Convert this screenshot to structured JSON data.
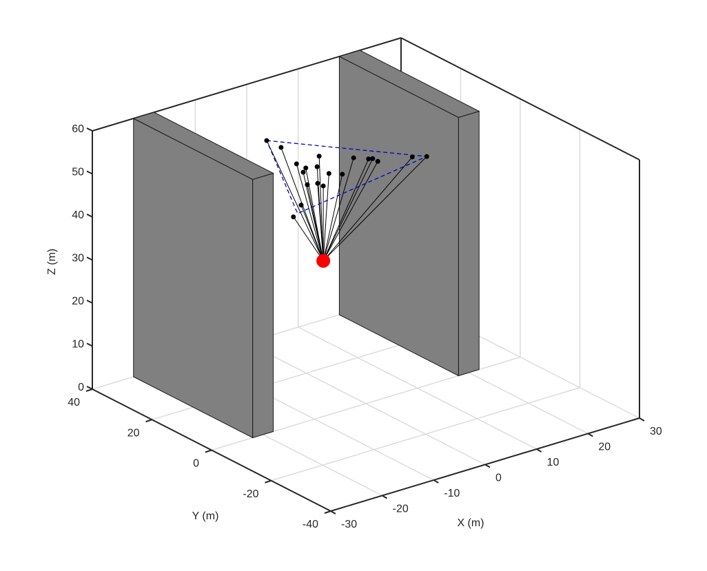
{
  "chart_data": {
    "type": "scatter3d",
    "xlabel": "X (m)",
    "ylabel": "Y (m)",
    "zlabel": "Z (m)",
    "xlim": [
      -30,
      30
    ],
    "ylim": [
      -40,
      40
    ],
    "zlim": [
      0,
      60
    ],
    "xticks": [
      -30,
      -20,
      -10,
      0,
      10,
      20,
      30
    ],
    "yticks": [
      -40,
      -20,
      0,
      20,
      40
    ],
    "zticks": [
      0,
      10,
      20,
      30,
      40,
      50,
      60
    ],
    "grid": true,
    "walls": [
      {
        "x": [
          -22,
          -18
        ],
        "y": [
          0,
          40
        ],
        "z": [
          0,
          60
        ],
        "color": "#808080"
      },
      {
        "x": [
          18,
          22
        ],
        "y": [
          0,
          40
        ],
        "z": [
          0,
          60
        ],
        "color": "#808080"
      }
    ],
    "source": {
      "x": 3.3,
      "y": 20,
      "z": 24.9,
      "color": "#ff0000"
    },
    "points": {
      "color": "#000000",
      "x": [
        -7.7,
        -4.9,
        -1.9,
        -0.1,
        -0.6,
        2.5,
        2.1,
        0.2,
        2.2,
        3.3,
        4.4,
        7.0,
        9.2,
        12.1,
        12.9,
        13.9,
        20.6,
        23.4,
        -1.0,
        -2.5
      ],
      "y": [
        20,
        20,
        20,
        20,
        20,
        20,
        20,
        20,
        20,
        20,
        20,
        20,
        20,
        20,
        20,
        20,
        20,
        20,
        20,
        20
      ],
      "z": [
        56.8,
        54.2,
        49.3,
        47.7,
        46.9,
        49.5,
        47.2,
        43.7,
        43.3,
        42.3,
        44.8,
        43.7,
        46.7,
        45.4,
        45.2,
        44.2,
        42.8,
        41.9,
        39.4,
        37.2
      ]
    },
    "triangle": {
      "color": "#0000cc",
      "x": [
        -7.7,
        23.4,
        -1.7
      ],
      "y": [
        20,
        20,
        20
      ],
      "z": [
        56.8,
        41.9,
        37.7
      ]
    }
  }
}
